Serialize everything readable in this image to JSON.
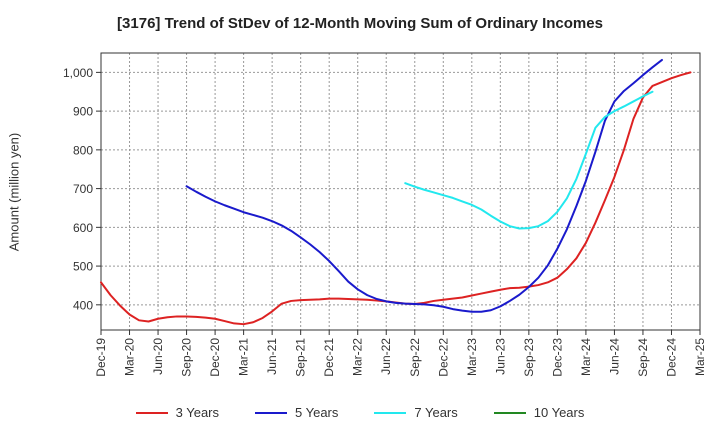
{
  "chart_data": {
    "type": "line",
    "title": "[3176]  Trend of StDev of 12-Month Moving Sum of Ordinary Incomes",
    "xlabel": "",
    "ylabel": "Amount (million yen)",
    "ylim": [
      335,
      1050
    ],
    "yticks": [
      400,
      500,
      600,
      700,
      800,
      900,
      1000
    ],
    "ytick_labels": [
      "400",
      "500",
      "600",
      "700",
      "800",
      "900",
      "1,000"
    ],
    "x_months": [
      "Dec-19",
      "Jan-20",
      "Feb-20",
      "Mar-20",
      "Apr-20",
      "May-20",
      "Jun-20",
      "Jul-20",
      "Aug-20",
      "Sep-20",
      "Oct-20",
      "Nov-20",
      "Dec-20",
      "Jan-21",
      "Feb-21",
      "Mar-21",
      "Apr-21",
      "May-21",
      "Jun-21",
      "Jul-21",
      "Aug-21",
      "Sep-21",
      "Oct-21",
      "Nov-21",
      "Dec-21",
      "Jan-22",
      "Feb-22",
      "Mar-22",
      "Apr-22",
      "May-22",
      "Jun-22",
      "Jul-22",
      "Aug-22",
      "Sep-22",
      "Oct-22",
      "Nov-22",
      "Dec-22",
      "Jan-23",
      "Feb-23",
      "Mar-23",
      "Apr-23",
      "May-23",
      "Jun-23",
      "Jul-23",
      "Aug-23",
      "Sep-23",
      "Oct-23",
      "Nov-23",
      "Dec-23",
      "Jan-24",
      "Feb-24",
      "Mar-24",
      "Apr-24",
      "May-24",
      "Jun-24",
      "Jul-24",
      "Aug-24",
      "Sep-24",
      "Oct-24",
      "Nov-24",
      "Dec-24",
      "Jan-25",
      "Feb-25",
      "Mar-25"
    ],
    "xtick_labels": [
      "Dec-19",
      "Mar-20",
      "Jun-20",
      "Sep-20",
      "Dec-20",
      "Mar-21",
      "Jun-21",
      "Sep-21",
      "Dec-21",
      "Mar-22",
      "Jun-22",
      "Sep-22",
      "Dec-22",
      "Mar-23",
      "Jun-23",
      "Sep-23",
      "Dec-23",
      "Mar-24",
      "Jun-24",
      "Sep-24",
      "Dec-24",
      "Mar-25"
    ],
    "grid": true,
    "legend_position": "bottom",
    "series": [
      {
        "name": "3 Years",
        "color": "#dd2222",
        "start": "Dec-19",
        "values": [
          458,
          425,
          398,
          375,
          360,
          357,
          364,
          368,
          370,
          370,
          369,
          367,
          364,
          358,
          352,
          350,
          355,
          366,
          383,
          403,
          410,
          412,
          413,
          414,
          416,
          416,
          415,
          414,
          413,
          411,
          409,
          406,
          403,
          402,
          405,
          410,
          413,
          416,
          419,
          424,
          429,
          434,
          439,
          443,
          444,
          447,
          451,
          458,
          470,
          492,
          520,
          560,
          612,
          670,
          730,
          800,
          880,
          935,
          965,
          975,
          985,
          993,
          1000
        ]
      },
      {
        "name": "5 Years",
        "color": "#1a1acc",
        "start": "Sep-20",
        "values": [
          706,
          692,
          679,
          667,
          657,
          648,
          639,
          632,
          625,
          616,
          605,
          591,
          574,
          556,
          536,
          513,
          487,
          460,
          440,
          425,
          415,
          409,
          405,
          403,
          402,
          401,
          399,
          395,
          389,
          385,
          382,
          382,
          386,
          396,
          410,
          426,
          446,
          470,
          502,
          545,
          595,
          655,
          720,
          795,
          875,
          925,
          952,
          972,
          993,
          1013,
          1032
        ]
      },
      {
        "name": "7 Years",
        "color": "#22e8ee",
        "start": "Aug-22",
        "values": [
          714,
          705,
          697,
          690,
          683,
          676,
          667,
          658,
          646,
          630,
          615,
          603,
          597,
          598,
          603,
          616,
          640,
          675,
          725,
          790,
          857,
          885,
          900,
          912,
          925,
          938,
          950
        ]
      },
      {
        "name": "10 Years",
        "color": "#228822",
        "start": "Dec-19",
        "values": []
      }
    ]
  }
}
